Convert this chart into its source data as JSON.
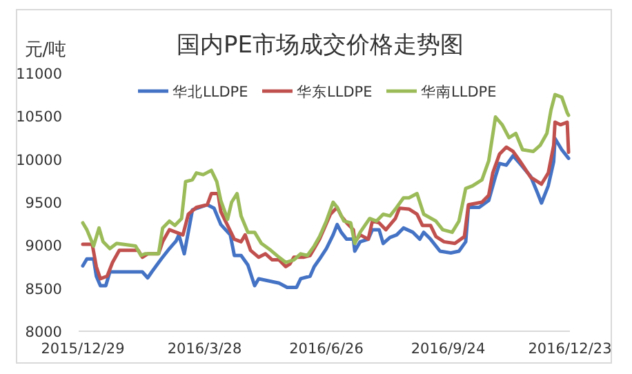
{
  "chart_data": {
    "type": "line",
    "title": "国内PE市场成交价格走势图",
    "ylabel": "元/吨",
    "xlim": [
      "2015-12-29",
      "2016-12-23"
    ],
    "xticks": [
      {
        "value": "2015-12-29",
        "label": "2015/12/29"
      },
      {
        "value": "2016-03-28",
        "label": "2016/3/28"
      },
      {
        "value": "2016-06-26",
        "label": "2016/6/26"
      },
      {
        "value": "2016-09-24",
        "label": "2016/9/24"
      },
      {
        "value": "2016-12-23",
        "label": "2016/12/23"
      }
    ],
    "ylim": [
      8000,
      11000
    ],
    "yticks": [
      8000,
      8500,
      9000,
      9500,
      10000,
      10500,
      11000
    ],
    "grid": false,
    "legend": "top",
    "marker": "none",
    "line_style": "solid",
    "series": [
      {
        "name": "华北LLDPE",
        "color": "#4472c4",
        "x": [
          "2015-12-29",
          "2016-01-01",
          "2016-01-06",
          "2016-01-08",
          "2016-01-11",
          "2016-01-15",
          "2016-01-18",
          "2016-02-11",
          "2016-02-15",
          "2016-02-18",
          "2016-02-25",
          "2016-03-02",
          "2016-03-07",
          "2016-03-09",
          "2016-03-13",
          "2016-03-19",
          "2016-03-30",
          "2016-04-04",
          "2016-04-09",
          "2016-04-16",
          "2016-04-19",
          "2016-04-24",
          "2016-04-29",
          "2016-05-04",
          "2016-05-07",
          "2016-05-16",
          "2016-05-22",
          "2016-05-28",
          "2016-06-04",
          "2016-06-07",
          "2016-06-14",
          "2016-06-17",
          "2016-06-21",
          "2016-06-26",
          "2016-07-01",
          "2016-07-04",
          "2016-07-07",
          "2016-07-11",
          "2016-07-16",
          "2016-07-17",
          "2016-07-21",
          "2016-07-27",
          "2016-07-30",
          "2016-08-04",
          "2016-08-07",
          "2016-08-12",
          "2016-08-17",
          "2016-08-22",
          "2016-08-29",
          "2016-09-03",
          "2016-09-06",
          "2016-09-11",
          "2016-09-18",
          "2016-09-26",
          "2016-10-02",
          "2016-10-07",
          "2016-10-09",
          "2016-10-17",
          "2016-10-24",
          "2016-10-29",
          "2016-11-01",
          "2016-11-06",
          "2016-11-11",
          "2016-11-16",
          "2016-11-24",
          "2016-11-29",
          "2016-12-02",
          "2016-12-07",
          "2016-12-11",
          "2016-12-12",
          "2016-12-17",
          "2016-12-22"
        ],
        "values": [
          8760,
          8840,
          8840,
          8640,
          8530,
          8530,
          8690,
          8690,
          8620,
          8690,
          8840,
          8960,
          9050,
          9120,
          8900,
          9410,
          9470,
          9430,
          9240,
          9120,
          8880,
          8880,
          8770,
          8530,
          8610,
          8580,
          8560,
          8510,
          8510,
          8610,
          8640,
          8750,
          8840,
          8960,
          9120,
          9240,
          9150,
          9070,
          9070,
          8930,
          9040,
          9070,
          9180,
          9180,
          9020,
          9090,
          9120,
          9200,
          9150,
          9070,
          9150,
          9070,
          8930,
          8910,
          8930,
          9040,
          9440,
          9440,
          9520,
          9800,
          9950,
          9930,
          10040,
          9950,
          9800,
          9610,
          9490,
          9690,
          9970,
          10240,
          10110,
          10010
        ]
      },
      {
        "name": "华东LLDPE",
        "color": "#c0504d",
        "x": [
          "2015-12-29",
          "2016-01-05",
          "2016-01-08",
          "2016-01-11",
          "2016-01-16",
          "2016-01-20",
          "2016-01-25",
          "2016-02-08",
          "2016-02-11",
          "2016-02-15",
          "2016-02-23",
          "2016-02-26",
          "2016-03-02",
          "2016-03-07",
          "2016-03-12",
          "2016-03-16",
          "2016-03-22",
          "2016-03-30",
          "2016-04-02",
          "2016-04-07",
          "2016-04-09",
          "2016-04-14",
          "2016-04-19",
          "2016-04-24",
          "2016-04-27",
          "2016-05-01",
          "2016-05-07",
          "2016-05-12",
          "2016-05-17",
          "2016-05-22",
          "2016-05-27",
          "2016-05-30",
          "2016-06-02",
          "2016-06-09",
          "2016-06-14",
          "2016-06-17",
          "2016-06-21",
          "2016-06-24",
          "2016-06-29",
          "2016-07-04",
          "2016-07-07",
          "2016-07-11",
          "2016-07-16",
          "2016-07-17",
          "2016-07-21",
          "2016-07-27",
          "2016-07-30",
          "2016-08-04",
          "2016-08-09",
          "2016-08-16",
          "2016-08-19",
          "2016-08-26",
          "2016-09-01",
          "2016-09-05",
          "2016-09-11",
          "2016-09-15",
          "2016-09-21",
          "2016-09-29",
          "2016-10-06",
          "2016-10-09",
          "2016-10-19",
          "2016-10-24",
          "2016-10-27",
          "2016-11-01",
          "2016-11-06",
          "2016-11-11",
          "2016-11-16",
          "2016-11-24",
          "2016-11-29",
          "2016-12-02",
          "2016-12-07",
          "2016-12-11",
          "2016-12-12",
          "2016-12-16",
          "2016-12-21",
          "2016-12-22"
        ],
        "values": [
          9010,
          9010,
          8750,
          8610,
          8640,
          8800,
          8940,
          8940,
          8860,
          8900,
          8900,
          9040,
          9180,
          9150,
          9120,
          9360,
          9440,
          9470,
          9600,
          9600,
          9390,
          9230,
          9070,
          9040,
          9120,
          8940,
          8860,
          8900,
          8830,
          8830,
          8750,
          8780,
          8860,
          8860,
          8880,
          8960,
          9070,
          9180,
          9360,
          9440,
          9340,
          9260,
          9180,
          9040,
          9120,
          9070,
          9280,
          9260,
          9180,
          9310,
          9430,
          9420,
          9360,
          9230,
          9230,
          9100,
          9040,
          9020,
          9100,
          9470,
          9500,
          9580,
          9840,
          10060,
          10140,
          10090,
          9980,
          9790,
          9740,
          9710,
          9840,
          10160,
          10430,
          10400,
          10430,
          10080
        ]
      },
      {
        "name": "华南LLDPE",
        "color": "#9bbb59",
        "x": [
          "2015-12-29",
          "2016-01-01",
          "2016-01-06",
          "2016-01-10",
          "2016-01-13",
          "2016-01-18",
          "2016-01-23",
          "2016-02-06",
          "2016-02-10",
          "2016-02-13",
          "2016-02-23",
          "2016-02-26",
          "2016-03-02",
          "2016-03-06",
          "2016-03-11",
          "2016-03-14",
          "2016-03-19",
          "2016-03-22",
          "2016-03-27",
          "2016-04-02",
          "2016-04-06",
          "2016-04-09",
          "2016-04-14",
          "2016-04-17",
          "2016-04-21",
          "2016-04-24",
          "2016-04-29",
          "2016-05-04",
          "2016-05-09",
          "2016-05-16",
          "2016-05-22",
          "2016-05-27",
          "2016-06-02",
          "2016-06-07",
          "2016-06-12",
          "2016-06-17",
          "2016-06-21",
          "2016-06-26",
          "2016-07-01",
          "2016-07-04",
          "2016-07-09",
          "2016-07-14",
          "2016-07-17",
          "2016-07-21",
          "2016-07-28",
          "2016-08-02",
          "2016-08-07",
          "2016-08-12",
          "2016-08-17",
          "2016-08-22",
          "2016-08-26",
          "2016-09-01",
          "2016-09-06",
          "2016-09-15",
          "2016-09-20",
          "2016-09-27",
          "2016-10-02",
          "2016-10-07",
          "2016-10-12",
          "2016-10-19",
          "2016-10-24",
          "2016-10-29",
          "2016-11-03",
          "2016-11-08",
          "2016-11-13",
          "2016-11-18",
          "2016-11-26",
          "2016-12-01",
          "2016-12-06",
          "2016-12-09",
          "2016-12-12",
          "2016-12-17",
          "2016-12-21",
          "2016-12-22"
        ],
        "values": [
          9260,
          9180,
          8990,
          9200,
          9040,
          8960,
          9020,
          8990,
          8880,
          8900,
          8900,
          9200,
          9280,
          9230,
          9310,
          9740,
          9760,
          9840,
          9820,
          9870,
          9740,
          9520,
          9300,
          9500,
          9600,
          9340,
          9150,
          9150,
          9020,
          8940,
          8860,
          8800,
          8830,
          8900,
          8880,
          8990,
          9100,
          9280,
          9500,
          9440,
          9280,
          9260,
          9020,
          9150,
          9310,
          9280,
          9360,
          9340,
          9440,
          9550,
          9550,
          9600,
          9360,
          9280,
          9180,
          9150,
          9280,
          9660,
          9690,
          9760,
          9980,
          10490,
          10400,
          10250,
          10300,
          10110,
          10090,
          10160,
          10300,
          10570,
          10750,
          10720,
          10540,
          10510
        ]
      }
    ]
  }
}
